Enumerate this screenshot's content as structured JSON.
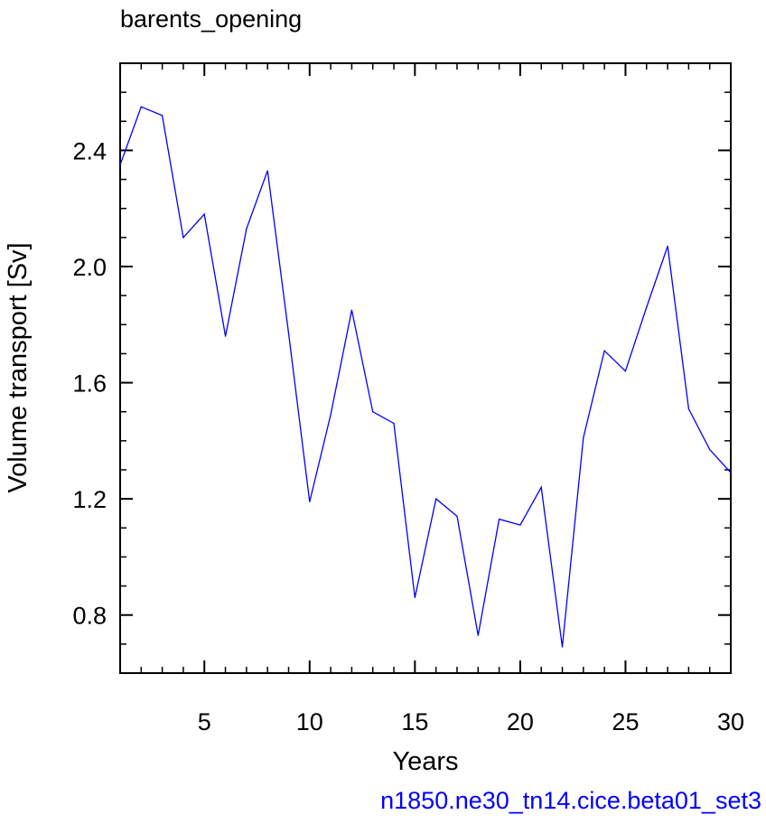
{
  "chart_data": {
    "type": "line",
    "title": "barents_opening",
    "xlabel": "Years",
    "ylabel": "Volume transport [Sv]",
    "footer": "n1850.ne30_tn14.cice.beta01_set3",
    "xlim": [
      1,
      30
    ],
    "ylim": [
      0.6,
      2.7
    ],
    "x_ticks": [
      5,
      10,
      15,
      20,
      25,
      30
    ],
    "y_ticks": [
      0.8,
      1.2,
      1.6,
      2.0,
      2.4
    ],
    "x_minor_ticks": [
      1,
      2,
      3,
      4,
      6,
      7,
      8,
      9,
      11,
      12,
      13,
      14,
      16,
      17,
      18,
      19,
      21,
      22,
      23,
      24,
      26,
      27,
      28,
      29
    ],
    "y_minor_ticks": [
      0.6,
      0.7,
      0.9,
      1.0,
      1.1,
      1.3,
      1.4,
      1.5,
      1.7,
      1.8,
      1.9,
      2.1,
      2.2,
      2.3,
      2.5,
      2.6,
      2.7
    ],
    "x_tick_labels": [
      "5",
      "10",
      "15",
      "20",
      "25",
      "30"
    ],
    "y_tick_labels": [
      "0.8",
      "1.2",
      "1.6",
      "2.0",
      "2.4"
    ],
    "grid": false,
    "series": [
      {
        "color": "#0000ff",
        "x": [
          1,
          2,
          3,
          4,
          5,
          6,
          7,
          8,
          9,
          10,
          11,
          12,
          13,
          14,
          15,
          16,
          17,
          18,
          19,
          20,
          21,
          22,
          23,
          24,
          25,
          26,
          27,
          28,
          29,
          30
        ],
        "values": [
          2.35,
          2.55,
          2.52,
          2.1,
          2.18,
          1.76,
          2.13,
          2.33,
          1.77,
          1.19,
          1.49,
          1.85,
          1.5,
          1.46,
          0.86,
          1.2,
          1.14,
          0.73,
          1.13,
          1.11,
          1.24,
          0.69,
          1.41,
          1.71,
          1.64,
          1.86,
          2.07,
          1.51,
          1.37,
          1.29
        ]
      }
    ]
  },
  "colors": {
    "series": "#0000ff",
    "footer": "#0000ff",
    "axis": "#000000"
  }
}
